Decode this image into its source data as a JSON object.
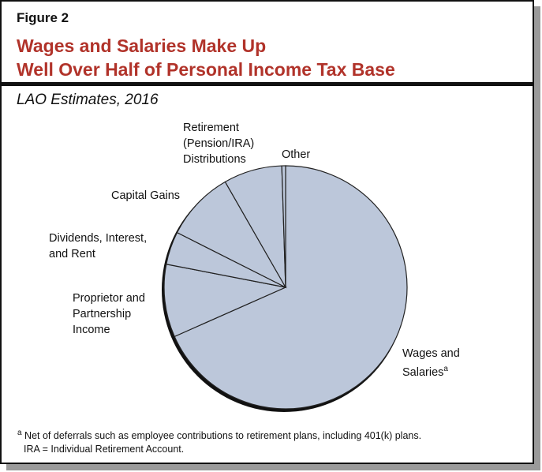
{
  "figure_label": "Figure 2",
  "title_line1": "Wages and Salaries Make Up",
  "title_line2": "Well Over Half of Personal Income Tax Base",
  "subtitle": "LAO Estimates, 2016",
  "chart_data": {
    "type": "pie",
    "title": "Wages and Salaries Make Up Well Over Half of Personal Income Tax Base",
    "subtitle": "LAO Estimates, 2016",
    "slice_color": "#bcc7da",
    "slices": [
      {
        "label": "Wages and Salaries",
        "superscript": "a",
        "value": 68.5
      },
      {
        "label": "Proprietor and Partnership Income",
        "value": 9.7
      },
      {
        "label": "Dividends, Interest, and Rent",
        "value": 4.4
      },
      {
        "label": "Capital Gains",
        "value": 9.3
      },
      {
        "label": "Retirement (Pension/IRA) Distributions",
        "value": 7.8
      },
      {
        "label": "Other",
        "value": 0.5
      }
    ]
  },
  "labels": {
    "wages": [
      "Wages and",
      "Salaries",
      "a"
    ],
    "proprietor": [
      "Proprietor and",
      "Partnership",
      "Income"
    ],
    "dividends": [
      "Dividends, Interest,",
      "and Rent"
    ],
    "capital": [
      "Capital Gains"
    ],
    "retirement": [
      "Retirement",
      "(Pension/IRA)",
      "Distributions"
    ],
    "other": [
      "Other"
    ]
  },
  "footnote": {
    "marker": "a",
    "line1": "Net of deferrals such as employee contributions to retirement plans, including 401(k) plans.",
    "line2": "IRA = Individual Retirement Account."
  }
}
